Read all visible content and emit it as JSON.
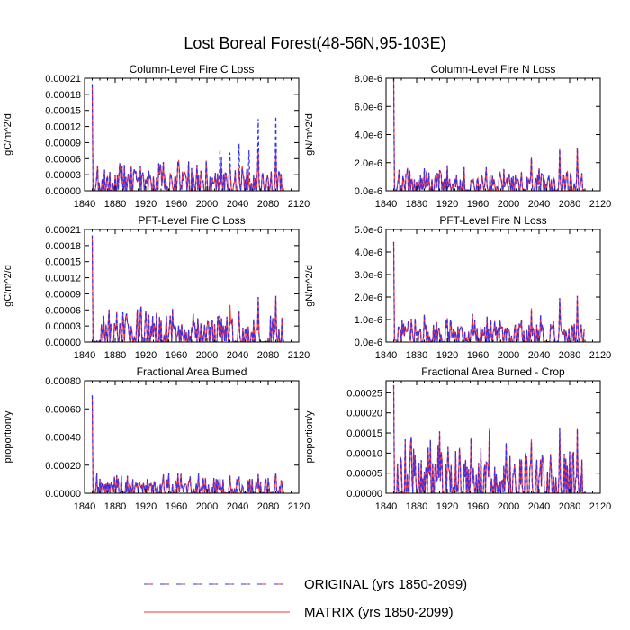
{
  "figure": {
    "title": "Lost Boreal Forest(48-56N,95-103E)"
  },
  "colors": {
    "original": "#3333ee",
    "matrix": "#ff3030",
    "axis": "#000000"
  },
  "legend": {
    "original_label": "ORIGINAL (yrs 1850-2099)",
    "matrix_label": "MATRIX (yrs 1850-2099)"
  },
  "chart_data": [
    {
      "type": "line",
      "title": "Column-Level Fire C Loss",
      "ylabel": "gC/m^2/d",
      "xlim": [
        1840,
        2120
      ],
      "xticks": [
        1840,
        1880,
        1920,
        1960,
        2000,
        2040,
        2080,
        2120
      ],
      "xtick_labels": [
        "1840",
        "1880",
        "1920",
        "1960",
        "2000",
        "2040",
        "2080",
        "2120"
      ],
      "ylim": [
        0,
        0.00021
      ],
      "yticks": [
        0,
        3e-05,
        6e-05,
        9e-05,
        0.00012,
        0.00015,
        0.00018,
        0.00021
      ],
      "ytick_labels": [
        "0.00000",
        "0.00003",
        "0.00006",
        "0.00009",
        "0.00012",
        "0.00015",
        "0.00018",
        "0.00021"
      ],
      "series": [
        {
          "name": "ORIGINAL (yrs 1850-2099)",
          "style": "dashed",
          "x_range": [
            1850,
            2099
          ],
          "values": []
        },
        {
          "name": "MATRIX (yrs 1850-2099)",
          "style": "solid",
          "x_range": [
            1850,
            2099
          ],
          "values": []
        }
      ]
    },
    {
      "type": "line",
      "title": "Column-Level Fire N Loss",
      "ylabel": "gN/m^2/d",
      "xlim": [
        1840,
        2120
      ],
      "xticks": [
        1840,
        1880,
        1920,
        1960,
        2000,
        2040,
        2080,
        2120
      ],
      "xtick_labels": [
        "1840",
        "1880",
        "1920",
        "1960",
        "2000",
        "2040",
        "2080",
        "2120"
      ],
      "ylim": [
        0,
        8e-06
      ],
      "yticks": [
        0,
        2e-06,
        4e-06,
        6e-06,
        8e-06
      ],
      "ytick_labels": [
        "0.0e-6",
        "2.0e-6",
        "4.0e-6",
        "6.0e-6",
        "8.0e-6"
      ],
      "series": [
        {
          "name": "ORIGINAL (yrs 1850-2099)",
          "style": "dashed",
          "x_range": [
            1850,
            2099
          ],
          "values": []
        },
        {
          "name": "MATRIX (yrs 1850-2099)",
          "style": "solid",
          "x_range": [
            1850,
            2099
          ],
          "values": []
        }
      ]
    },
    {
      "type": "line",
      "title": "PFT-Level Fire C Loss",
      "ylabel": "gC/m^2/d",
      "xlim": [
        1840,
        2120
      ],
      "xticks": [
        1840,
        1880,
        1920,
        1960,
        2000,
        2040,
        2080,
        2120
      ],
      "xtick_labels": [
        "1840",
        "1880",
        "1920",
        "1960",
        "2000",
        "2040",
        "2080",
        "2120"
      ],
      "ylim": [
        0,
        0.00021
      ],
      "yticks": [
        0,
        3e-05,
        6e-05,
        9e-05,
        0.00012,
        0.00015,
        0.00018,
        0.00021
      ],
      "ytick_labels": [
        "0.00000",
        "0.00003",
        "0.00006",
        "0.00009",
        "0.00012",
        "0.00015",
        "0.00018",
        "0.00021"
      ],
      "series": [
        {
          "name": "ORIGINAL (yrs 1850-2099)",
          "style": "dashed",
          "x_range": [
            1850,
            2099
          ],
          "values": []
        },
        {
          "name": "MATRIX (yrs 1850-2099)",
          "style": "solid",
          "x_range": [
            1850,
            2099
          ],
          "values": []
        }
      ]
    },
    {
      "type": "line",
      "title": "PFT-Level Fire N Loss",
      "ylabel": "gN/m^2/d",
      "xlim": [
        1840,
        2120
      ],
      "xticks": [
        1840,
        1880,
        1920,
        1960,
        2000,
        2040,
        2080,
        2120
      ],
      "xtick_labels": [
        "1840",
        "1880",
        "1920",
        "1960",
        "2000",
        "2040",
        "2080",
        "2120"
      ],
      "ylim": [
        0,
        5e-06
      ],
      "yticks": [
        0,
        1e-06,
        2e-06,
        3e-06,
        4e-06,
        5e-06
      ],
      "ytick_labels": [
        "0.0e-6",
        "1.0e-6",
        "2.0e-6",
        "3.0e-6",
        "4.0e-6",
        "5.0e-6"
      ],
      "series": [
        {
          "name": "ORIGINAL (yrs 1850-2099)",
          "style": "dashed",
          "x_range": [
            1850,
            2099
          ],
          "values": []
        },
        {
          "name": "MATRIX (yrs 1850-2099)",
          "style": "solid",
          "x_range": [
            1850,
            2099
          ],
          "values": []
        }
      ]
    },
    {
      "type": "line",
      "title": "Fractional Area Burned",
      "ylabel": "proportion/y",
      "xlim": [
        1840,
        2120
      ],
      "xticks": [
        1840,
        1880,
        1920,
        1960,
        2000,
        2040,
        2080,
        2120
      ],
      "xtick_labels": [
        "1840",
        "1880",
        "1920",
        "1960",
        "2000",
        "2040",
        "2080",
        "2120"
      ],
      "ylim": [
        0,
        0.0008
      ],
      "yticks": [
        0,
        0.0002,
        0.0004,
        0.0006,
        0.0008
      ],
      "ytick_labels": [
        "0.00000",
        "0.00020",
        "0.00040",
        "0.00060",
        "0.00080"
      ],
      "series": [
        {
          "name": "ORIGINAL (yrs 1850-2099)",
          "style": "dashed",
          "x_range": [
            1850,
            2099
          ],
          "values": []
        },
        {
          "name": "MATRIX (yrs 1850-2099)",
          "style": "solid",
          "x_range": [
            1850,
            2099
          ],
          "values": []
        }
      ]
    },
    {
      "type": "line",
      "title": "Fractional Area Burned - Crop",
      "ylabel": "proportion/y",
      "xlim": [
        1840,
        2120
      ],
      "xticks": [
        1840,
        1880,
        1920,
        1960,
        2000,
        2040,
        2080,
        2120
      ],
      "xtick_labels": [
        "1840",
        "1880",
        "1920",
        "1960",
        "2000",
        "2040",
        "2080",
        "2120"
      ],
      "ylim": [
        0,
        0.00028
      ],
      "yticks": [
        0,
        5e-05,
        0.0001,
        0.00015,
        0.0002,
        0.00025
      ],
      "ytick_labels": [
        "0.00000",
        "0.00005",
        "0.00010",
        "0.00015",
        "0.00020",
        "0.00025"
      ],
      "series": [
        {
          "name": "ORIGINAL (yrs 1850-2099)",
          "style": "dashed",
          "x_range": [
            1850,
            2099
          ],
          "values": []
        },
        {
          "name": "MATRIX (yrs 1850-2099)",
          "style": "solid",
          "x_range": [
            1850,
            2099
          ],
          "values": []
        }
      ]
    }
  ]
}
